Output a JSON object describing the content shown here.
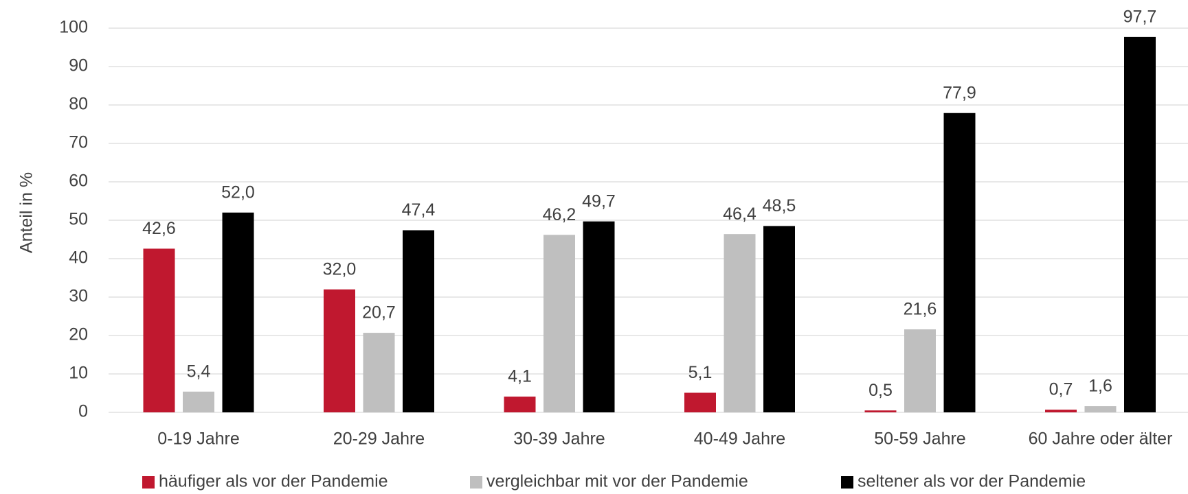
{
  "chart_data": {
    "type": "bar",
    "y_axis_label": "Anteil in %",
    "categories": [
      "0-19 Jahre",
      "20-29 Jahre",
      "30-39 Jahre",
      "40-49 Jahre",
      "50-59 Jahre",
      "60 Jahre oder älter"
    ],
    "series": [
      {
        "name": "häufiger als vor der Pandemie",
        "color": "#c0182f",
        "values": [
          42.6,
          32.0,
          4.1,
          5.1,
          0.5,
          0.7
        ],
        "value_labels": [
          "42,6",
          "32,0",
          "4,1",
          "5,1",
          "0,5",
          "0,7"
        ]
      },
      {
        "name": "vergleichbar mit vor der Pandemie",
        "color": "#bfbfbf",
        "values": [
          5.4,
          20.7,
          46.2,
          46.4,
          21.6,
          1.6
        ],
        "value_labels": [
          "5,4",
          "20,7",
          "46,2",
          "46,4",
          "21,6",
          "1,6"
        ]
      },
      {
        "name": "seltener als vor der Pandemie",
        "color": "#000000",
        "values": [
          52.0,
          47.4,
          49.7,
          48.5,
          77.9,
          97.7
        ],
        "value_labels": [
          "52,0",
          "47,4",
          "49,7",
          "48,5",
          "77,9",
          "97,7"
        ]
      }
    ],
    "ylim": [
      0,
      100
    ],
    "yticks": [
      0,
      10,
      20,
      30,
      40,
      50,
      60,
      70,
      80,
      90,
      100
    ],
    "grid": true,
    "legend": "bottom"
  }
}
